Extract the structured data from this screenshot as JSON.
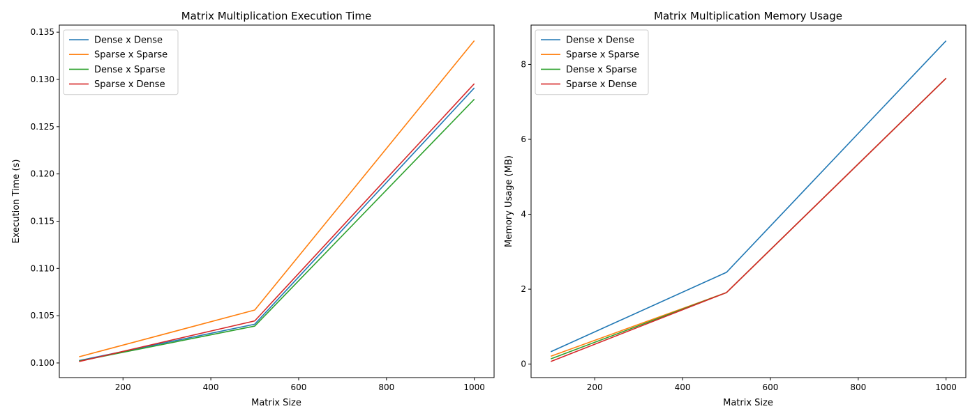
{
  "chart_data": [
    {
      "type": "line",
      "title": "Matrix Multiplication Execution Time",
      "xlabel": "Matrix Size",
      "ylabel": "Execution Time (s)",
      "x": [
        100,
        500,
        1000
      ],
      "xlim": [
        55,
        1045
      ],
      "ylim": [
        0.09845,
        0.13575
      ],
      "xticks": [
        200,
        400,
        600,
        800,
        1000
      ],
      "yticks": [
        0.1,
        0.105,
        0.11,
        0.115,
        0.12,
        0.125,
        0.13,
        0.135
      ],
      "ytick_decimals": 3,
      "grid": false,
      "legend_position": "top-left",
      "series": [
        {
          "name": "Dense x Dense",
          "color": "#1f77b4",
          "values": [
            0.10025,
            0.1041,
            0.1291
          ]
        },
        {
          "name": "Sparse x Sparse",
          "color": "#ff7f0e",
          "values": [
            0.10065,
            0.1056,
            0.1341
          ]
        },
        {
          "name": "Dense x Sparse",
          "color": "#2ca02c",
          "values": [
            0.1002,
            0.1039,
            0.1279
          ]
        },
        {
          "name": "Sparse x Dense",
          "color": "#d62728",
          "values": [
            0.10015,
            0.10445,
            0.12955
          ]
        }
      ]
    },
    {
      "type": "line",
      "title": "Matrix Multiplication Memory Usage",
      "xlabel": "Matrix Size",
      "ylabel": "Memory Usage (MB)",
      "x": [
        100,
        500,
        1000
      ],
      "xlim": [
        55,
        1045
      ],
      "ylim": [
        -0.36,
        9.05
      ],
      "xticks": [
        200,
        400,
        600,
        800,
        1000
      ],
      "yticks": [
        0,
        2,
        4,
        6,
        8
      ],
      "ytick_decimals": 0,
      "grid": false,
      "legend_position": "top-left",
      "series": [
        {
          "name": "Dense x Dense",
          "color": "#1f77b4",
          "values": [
            0.33,
            2.45,
            8.63
          ]
        },
        {
          "name": "Sparse x Sparse",
          "color": "#ff7f0e",
          "values": [
            0.21,
            1.91,
            7.63
          ]
        },
        {
          "name": "Dense x Sparse",
          "color": "#2ca02c",
          "values": [
            0.14,
            1.91,
            7.63
          ]
        },
        {
          "name": "Sparse x Dense",
          "color": "#d62728",
          "values": [
            0.07,
            1.91,
            7.63
          ]
        }
      ]
    }
  ]
}
